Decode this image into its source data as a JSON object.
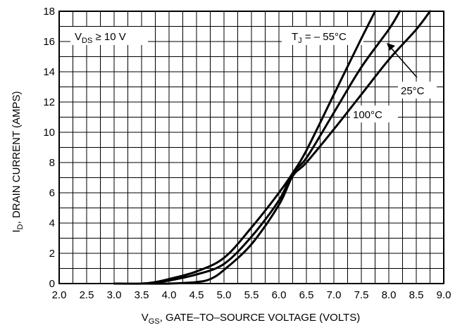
{
  "chart_data": {
    "type": "line",
    "xlabel": {
      "prefix": "V",
      "sub": "GS",
      "rest": ", GATE–TO–SOURCE VOLTAGE (VOLTS)"
    },
    "ylabel": {
      "prefix": "I",
      "sub": "D",
      "rest": ", DRAIN CURRENT (AMPS)"
    },
    "xlim": [
      2.0,
      9.0
    ],
    "ylim": [
      0,
      18
    ],
    "x_tick_labels": [
      "2.0",
      "2.5",
      "3.0",
      "3.5",
      "4.0",
      "4.5",
      "5.0",
      "5.5",
      "6.0",
      "6.5",
      "7.0",
      "7.5",
      "8.0",
      "8.5",
      "9.0"
    ],
    "y_tick_labels": [
      "0",
      "2",
      "4",
      "6",
      "8",
      "10",
      "12",
      "14",
      "16",
      "18"
    ],
    "grid": true,
    "annotations": {
      "vds": {
        "prefix": "V",
        "sub": "DS",
        "rest": " ≥ 10 V"
      },
      "tj": {
        "prefix": "T",
        "sub": "J",
        "rest": " = – 55°C"
      },
      "t25": "25°C",
      "t100": "100°C"
    },
    "series": [
      {
        "name": "T_J = –55°C",
        "x": [
          3.0,
          3.5,
          3.75,
          4.0,
          4.5,
          5.0,
          5.5,
          6.0,
          6.25,
          6.5,
          7.0,
          7.5,
          7.75
        ],
        "y": [
          0,
          0,
          0.1,
          0.3,
          0.8,
          1.7,
          3.7,
          6.0,
          7.3,
          8.8,
          12.5,
          16.2,
          18.0
        ]
      },
      {
        "name": "25°C",
        "x": [
          3.5,
          3.75,
          4.0,
          4.5,
          5.0,
          5.5,
          6.0,
          6.25,
          6.5,
          7.0,
          7.5,
          8.0,
          8.2
        ],
        "y": [
          0,
          0.05,
          0.2,
          0.6,
          1.3,
          3.1,
          5.5,
          7.3,
          8.3,
          11.3,
          14.3,
          16.8,
          18.0
        ]
      },
      {
        "name": "100°C",
        "x": [
          3.5,
          4.0,
          4.5,
          4.75,
          5.0,
          5.5,
          6.0,
          6.25,
          6.5,
          7.0,
          7.5,
          8.0,
          8.5,
          8.75
        ],
        "y": [
          0,
          0,
          0.1,
          0.3,
          0.9,
          2.6,
          5.2,
          7.1,
          8.0,
          10.2,
          12.5,
          14.8,
          16.8,
          18.0
        ]
      }
    ]
  }
}
